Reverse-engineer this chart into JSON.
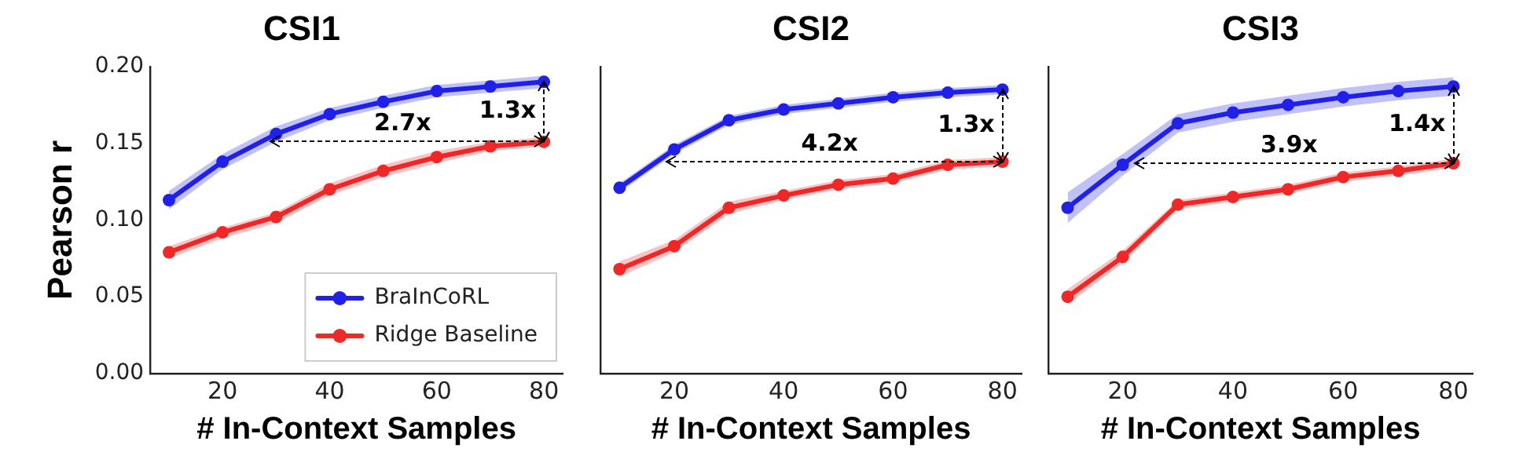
{
  "chart_data": [
    {
      "type": "line",
      "title": "CSI1",
      "xlabel": "# In-Context Samples",
      "ylabel": "Pearson r",
      "x": [
        10,
        20,
        30,
        40,
        50,
        60,
        70,
        80
      ],
      "xlim": [
        6.5,
        83.5
      ],
      "xticks": [
        20,
        40,
        60,
        80
      ],
      "ylim": [
        0,
        0.2
      ],
      "yticks": [
        {
          "value": 0,
          "label": "0.00"
        },
        0.05,
        {
          "value": 0.1,
          "label": "0.10"
        },
        0.15,
        {
          "value": 0.2,
          "label": "0.20"
        }
      ],
      "tick_labels": "xy",
      "grid": false,
      "marker": "circle",
      "line_style": "solid",
      "legend": "bottom right",
      "series": [
        {
          "name": "BraInCoRL",
          "color": "#2020e8",
          "values": [
            0.113,
            0.138,
            0.156,
            0.169,
            0.177,
            0.184,
            0.187,
            0.19
          ],
          "lower": [
            0.107,
            0.133,
            0.151,
            0.165,
            0.173,
            0.18,
            0.183,
            0.186
          ],
          "upper": [
            0.119,
            0.143,
            0.161,
            0.173,
            0.181,
            0.188,
            0.191,
            0.194
          ]
        },
        {
          "name": "Ridge Baseline",
          "color": "#f02828",
          "values": [
            0.079,
            0.092,
            0.102,
            0.12,
            0.132,
            0.141,
            0.148,
            0.151
          ],
          "lower": [
            0.075,
            0.088,
            0.098,
            0.116,
            0.128,
            0.137,
            0.145,
            0.148
          ],
          "upper": [
            0.083,
            0.095,
            0.105,
            0.124,
            0.136,
            0.145,
            0.151,
            0.154
          ]
        }
      ],
      "annotations": [
        "2.7x",
        "1.3x"
      ]
    },
    {
      "type": "line",
      "title": "CSI2",
      "xlabel": "# In-Context Samples",
      "x": [
        10,
        20,
        30,
        40,
        50,
        60,
        70,
        80
      ],
      "xlim": [
        6.5,
        83.5
      ],
      "xticks": [
        20,
        40,
        60,
        80
      ],
      "ylim": [
        0,
        0.2
      ],
      "tick_labels": "x",
      "grid": false,
      "marker": "circle",
      "line_style": "solid",
      "series": [
        {
          "color": "#2020e8",
          "values": [
            0.121,
            0.146,
            0.165,
            0.172,
            0.176,
            0.18,
            0.183,
            0.185
          ],
          "lower": [
            0.118,
            0.143,
            0.162,
            0.169,
            0.173,
            0.177,
            0.18,
            0.182
          ],
          "upper": [
            0.124,
            0.149,
            0.168,
            0.175,
            0.179,
            0.183,
            0.186,
            0.188
          ]
        },
        {
          "color": "#f02828",
          "values": [
            0.068,
            0.083,
            0.108,
            0.116,
            0.123,
            0.127,
            0.136,
            0.138
          ],
          "lower": [
            0.063,
            0.079,
            0.104,
            0.113,
            0.12,
            0.124,
            0.133,
            0.135
          ],
          "upper": [
            0.073,
            0.087,
            0.112,
            0.119,
            0.126,
            0.13,
            0.139,
            0.141
          ]
        }
      ],
      "annotations": [
        "4.2x",
        "1.3x"
      ]
    },
    {
      "type": "line",
      "title": "CSI3",
      "xlabel": "# In-Context Samples",
      "x": [
        10,
        20,
        30,
        40,
        50,
        60,
        70,
        80
      ],
      "xlim": [
        6.5,
        83.5
      ],
      "xticks": [
        20,
        40,
        60,
        80
      ],
      "ylim": [
        0,
        0.2
      ],
      "tick_labels": "x",
      "grid": false,
      "marker": "circle",
      "line_style": "solid",
      "series": [
        {
          "color": "#2020e8",
          "values": [
            0.108,
            0.136,
            0.163,
            0.17,
            0.175,
            0.18,
            0.184,
            0.187
          ],
          "lower": [
            0.098,
            0.129,
            0.157,
            0.164,
            0.169,
            0.174,
            0.178,
            0.181
          ],
          "upper": [
            0.118,
            0.143,
            0.169,
            0.176,
            0.181,
            0.186,
            0.19,
            0.193
          ]
        },
        {
          "color": "#f02828",
          "values": [
            0.05,
            0.076,
            0.11,
            0.115,
            0.12,
            0.128,
            0.132,
            0.137
          ],
          "lower": [
            0.045,
            0.072,
            0.107,
            0.112,
            0.117,
            0.125,
            0.129,
            0.134
          ],
          "upper": [
            0.055,
            0.08,
            0.113,
            0.118,
            0.123,
            0.131,
            0.135,
            0.14
          ]
        }
      ],
      "annotations": [
        "3.9x",
        "1.4x"
      ]
    }
  ]
}
